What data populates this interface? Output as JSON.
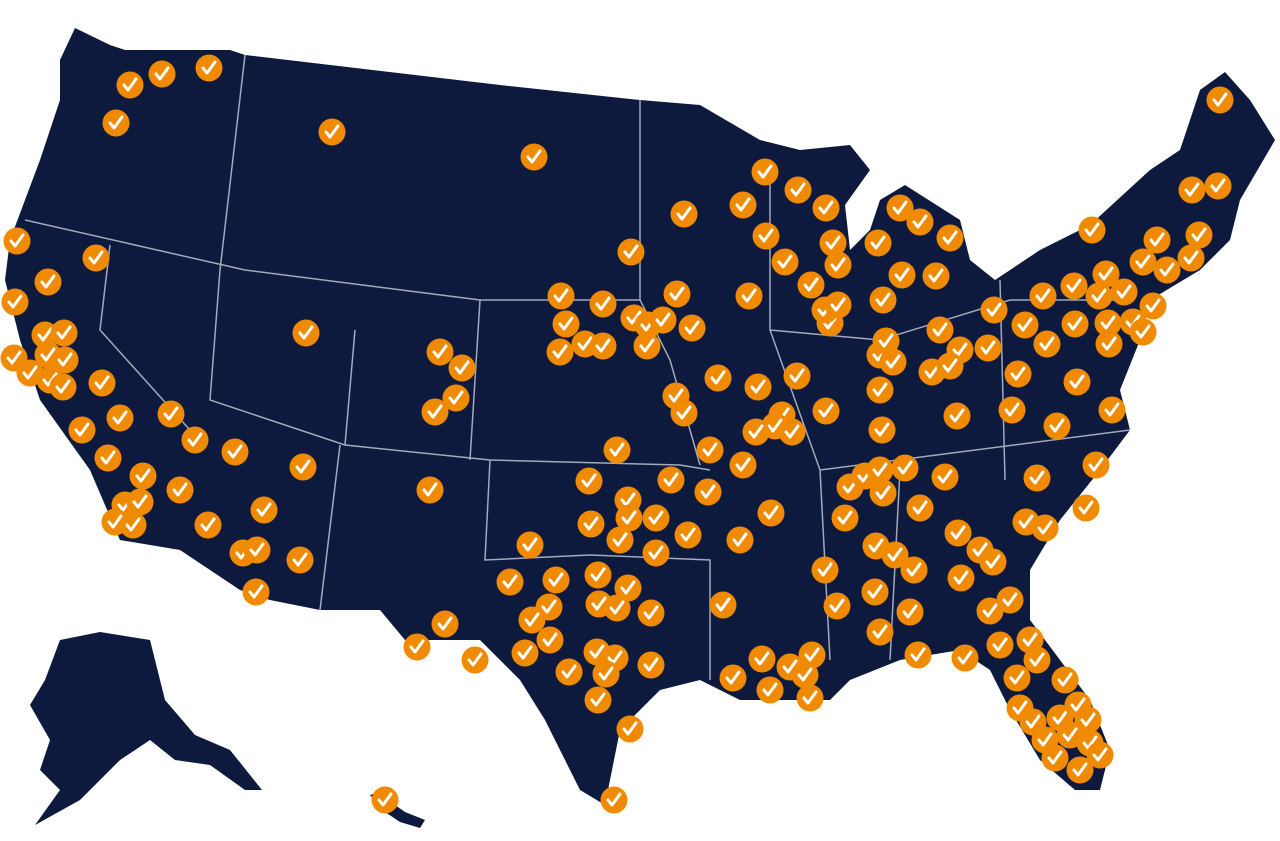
{
  "map": {
    "region": "United States",
    "land_color": "#0d1a3e",
    "border_color": "#c8cdd8",
    "background_color": "#ffffff",
    "marker": {
      "icon": "check-circle-icon",
      "fill_color": "#f08a00",
      "check_color": "#ffffff"
    }
  }
}
